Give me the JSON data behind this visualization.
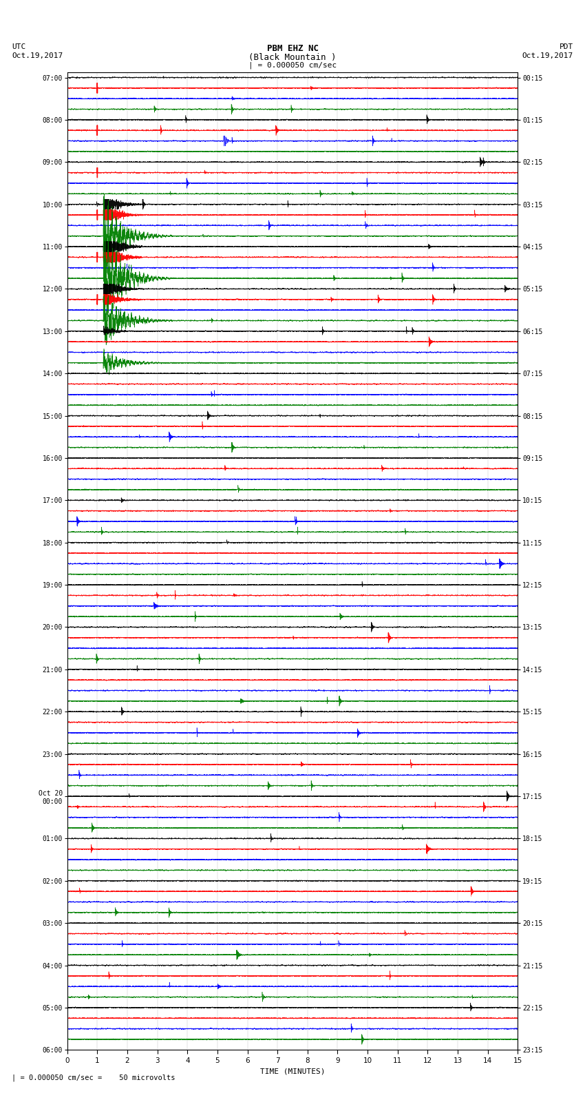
{
  "title_line1": "PBM EHZ NC",
  "title_line2": "(Black Mountain )",
  "title_line3": "| = 0.000050 cm/sec",
  "label_left_top1": "UTC",
  "label_left_top2": "Oct.19,2017",
  "label_right_top1": "PDT",
  "label_right_top2": "Oct.19,2017",
  "xlabel": "TIME (MINUTES)",
  "footnote": "| = 0.000050 cm/sec =    50 microvolts",
  "utc_labels": [
    "07:00",
    "",
    "",
    "",
    "08:00",
    "",
    "",
    "",
    "09:00",
    "",
    "",
    "",
    "10:00",
    "",
    "",
    "",
    "11:00",
    "",
    "",
    "",
    "12:00",
    "",
    "",
    "",
    "13:00",
    "",
    "",
    "",
    "14:00",
    "",
    "",
    "",
    "15:00",
    "",
    "",
    "",
    "16:00",
    "",
    "",
    "",
    "17:00",
    "",
    "",
    "",
    "18:00",
    "",
    "",
    "",
    "19:00",
    "",
    "",
    "",
    "20:00",
    "",
    "",
    "",
    "21:00",
    "",
    "",
    "",
    "22:00",
    "",
    "",
    "",
    "23:00",
    "",
    "",
    "",
    "Oct 20\n00:00",
    "",
    "",
    "",
    "01:00",
    "",
    "",
    "",
    "02:00",
    "",
    "",
    "",
    "03:00",
    "",
    "",
    "",
    "04:00",
    "",
    "",
    "",
    "05:00",
    "",
    "",
    "",
    "06:00",
    "",
    "",
    ""
  ],
  "pdt_labels": [
    "00:15",
    "",
    "",
    "",
    "01:15",
    "",
    "",
    "",
    "02:15",
    "",
    "",
    "",
    "03:15",
    "",
    "",
    "",
    "04:15",
    "",
    "",
    "",
    "05:15",
    "",
    "",
    "",
    "06:15",
    "",
    "",
    "",
    "07:15",
    "",
    "",
    "",
    "08:15",
    "",
    "",
    "",
    "09:15",
    "",
    "",
    "",
    "10:15",
    "",
    "",
    "",
    "11:15",
    "",
    "",
    "",
    "12:15",
    "",
    "",
    "",
    "13:15",
    "",
    "",
    "",
    "14:15",
    "",
    "",
    "",
    "15:15",
    "",
    "",
    "",
    "16:15",
    "",
    "",
    "",
    "17:15",
    "",
    "",
    "",
    "18:15",
    "",
    "",
    "",
    "19:15",
    "",
    "",
    "",
    "20:15",
    "",
    "",
    "",
    "21:15",
    "",
    "",
    "",
    "22:15",
    "",
    "",
    "",
    "23:15",
    "",
    "",
    ""
  ],
  "row_colors": [
    "black",
    "red",
    "blue",
    "green"
  ],
  "n_rows": 92,
  "x_min": 0,
  "x_max": 15,
  "x_ticks": [
    0,
    1,
    2,
    3,
    4,
    5,
    6,
    7,
    8,
    9,
    10,
    11,
    12,
    13,
    14,
    15
  ],
  "background_color": "white",
  "figure_width": 8.5,
  "figure_height": 16.13
}
